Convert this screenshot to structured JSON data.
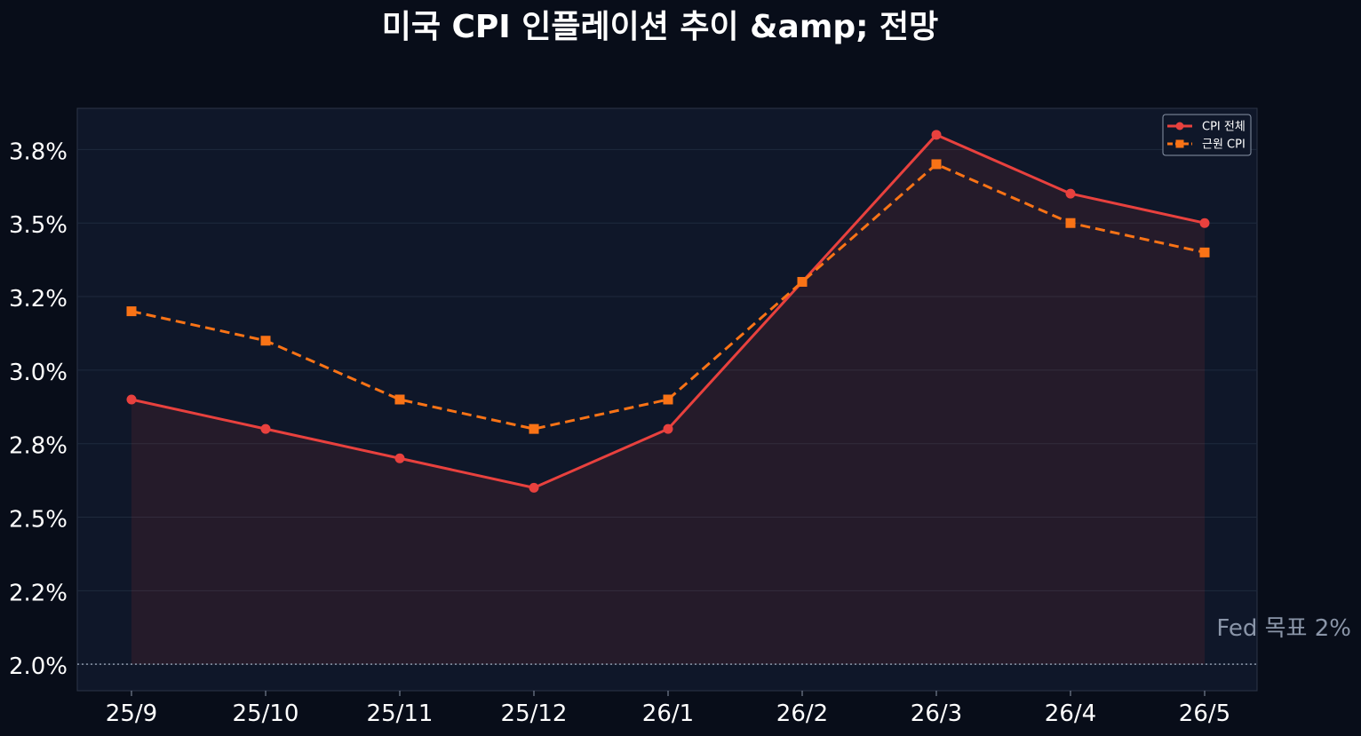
{
  "chart_data": {
    "type": "line",
    "title": "미국 CPI 인플레이션 추이 &amp; 전망",
    "categories": [
      "25/9",
      "25/10",
      "25/11",
      "25/12",
      "26/1",
      "26/2",
      "26/3",
      "26/4",
      "26/5"
    ],
    "series": [
      {
        "name": "CPI 전체",
        "values": [
          2.9,
          2.8,
          2.7,
          2.6,
          2.8,
          3.3,
          3.8,
          3.6,
          3.5
        ],
        "color": "#e8413e",
        "line_style": "solid",
        "marker": "circle"
      },
      {
        "name": "근원 CPI",
        "values": [
          3.2,
          3.1,
          2.9,
          2.8,
          2.9,
          3.3,
          3.7,
          3.5,
          3.4
        ],
        "color": "#f97316",
        "line_style": "dashed",
        "marker": "square"
      }
    ],
    "y_ticks": [
      2.0,
      2.25,
      2.5,
      2.75,
      3.0,
      3.25,
      3.5,
      3.75
    ],
    "y_tick_labels": [
      "2.0%",
      "2.2%",
      "2.5%",
      "2.8%",
      "3.0%",
      "3.2%",
      "3.5%",
      "3.8%"
    ],
    "ylim": [
      1.91,
      3.89
    ],
    "reference_line": {
      "value": 2.0,
      "label": "Fed 목표 2%",
      "style": "dotted",
      "color": "#8a95a8"
    },
    "fill_between": {
      "series": "CPI 전체",
      "baseline": 2.0
    },
    "grid": true,
    "legend_position": "top-right",
    "background_color": "#080d19",
    "plot_background_color": "#0f1729"
  }
}
